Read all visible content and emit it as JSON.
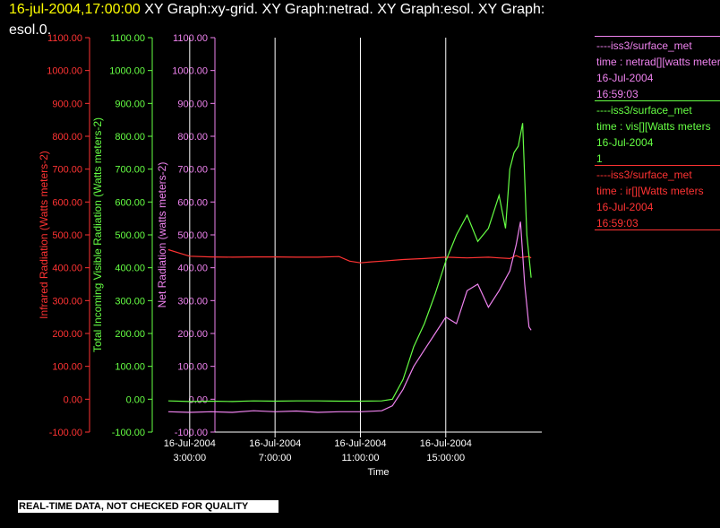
{
  "header": {
    "datetime": "16-jul-2004,17:00:00",
    "graphs_line1": "XY Graph:xy-grid.  XY Graph:netrad.  XY Graph:esol.  XY Graph:",
    "graphs_line2": "esol.0."
  },
  "legend": [
    {
      "lines": [
        "----iss3/surface_met",
        "time : netrad[][watts meters",
        "16-Jul-2004",
        "16:59:03"
      ],
      "color": "#ee82ee"
    },
    {
      "lines": [
        "----iss3/surface_met",
        "time : vis[][Watts meters",
        "16-Jul-2004",
        "1"
      ],
      "color": "#66ff44"
    },
    {
      "lines": [
        "----iss3/surface_met",
        "time : ir[][Watts meters",
        "16-Jul-2004",
        "16:59:03"
      ],
      "color": "#ff3333"
    }
  ],
  "disclaimer": "REAL-TIME DATA, NOT CHECKED FOR QUALITY",
  "colors": {
    "ir": "#ff3333",
    "vis": "#66ff44",
    "net": "#ee82ee",
    "grid": "#ffffff",
    "axis": "#ffffff"
  },
  "chart_data": {
    "type": "line",
    "xlabel": "Time",
    "x_ticks": [
      {
        "value": 3,
        "date": "16-Jul-2004",
        "time": "3:00:00"
      },
      {
        "value": 7,
        "date": "16-Jul-2004",
        "time": "7:00:00"
      },
      {
        "value": 11,
        "date": "16-Jul-2004",
        "time": "11:00:00"
      },
      {
        "value": 15,
        "date": "16-Jul-2004",
        "time": "15:00:00"
      }
    ],
    "xlim": [
      2,
      19.5
    ],
    "grid": "vertical",
    "y_axes": [
      {
        "key": "ir",
        "label": "Infrared Radiation (Watts meters-2)",
        "ylim": [
          -100,
          1100
        ],
        "color": "#ff3333"
      },
      {
        "key": "vis",
        "label": "Total Incoming Visible Radiation (Watts meters-2)",
        "ylim": [
          -100,
          1100
        ],
        "color": "#66ff44"
      },
      {
        "key": "net",
        "label": "Net Radiation (watts meters-2)",
        "ylim": [
          -100,
          1100
        ],
        "color": "#ee82ee"
      }
    ],
    "y_tick_labels": [
      "1100.00",
      "1000.00",
      "900.00",
      "800.00",
      "700.00",
      "600.00",
      "500.00",
      "400.00",
      "300.00",
      "200.00",
      "100.00",
      "0.00",
      "-100.00"
    ],
    "series": [
      {
        "name": "ir",
        "color": "#ff3333",
        "x": [
          2.0,
          2.5,
          3.0,
          4.0,
          5.0,
          6.0,
          7.0,
          8.0,
          9.0,
          10.0,
          10.5,
          11.0,
          11.5,
          12.0,
          13.0,
          14.0,
          15.0,
          16.0,
          17.0,
          17.5,
          18.0,
          18.3,
          18.5,
          18.9,
          19.0
        ],
        "y": [
          455,
          445,
          435,
          433,
          432,
          433,
          433,
          432,
          432,
          434,
          420,
          415,
          418,
          420,
          425,
          428,
          432,
          430,
          432,
          430,
          428,
          437,
          431,
          434,
          430
        ]
      },
      {
        "name": "vis",
        "color": "#66ff44",
        "x": [
          2.0,
          3.0,
          4.0,
          5.0,
          6.0,
          7.0,
          8.0,
          9.0,
          10.0,
          11.0,
          12.0,
          12.5,
          13.0,
          13.5,
          14.0,
          14.5,
          15.0,
          15.5,
          16.0,
          16.5,
          17.0,
          17.5,
          17.8,
          18.0,
          18.2,
          18.4,
          18.6,
          18.8,
          19.0
        ],
        "y": [
          -5,
          -7,
          -6,
          -7,
          -5,
          -6,
          -5,
          -5,
          -6,
          -6,
          -5,
          0,
          60,
          160,
          230,
          320,
          420,
          500,
          560,
          480,
          520,
          620,
          520,
          700,
          750,
          770,
          840,
          500,
          370
        ]
      },
      {
        "name": "net",
        "color": "#ee82ee",
        "x": [
          2.0,
          3.0,
          4.0,
          5.0,
          6.0,
          7.0,
          8.0,
          9.0,
          10.0,
          11.0,
          12.0,
          12.5,
          13.0,
          13.5,
          14.0,
          14.5,
          15.0,
          15.5,
          16.0,
          16.5,
          17.0,
          17.5,
          18.0,
          18.3,
          18.5,
          18.7,
          18.9,
          19.0
        ],
        "y": [
          -38,
          -40,
          -38,
          -40,
          -35,
          -38,
          -36,
          -40,
          -38,
          -38,
          -35,
          -20,
          30,
          100,
          150,
          200,
          250,
          230,
          330,
          350,
          280,
          330,
          390,
          470,
          540,
          350,
          220,
          210
        ]
      }
    ]
  }
}
